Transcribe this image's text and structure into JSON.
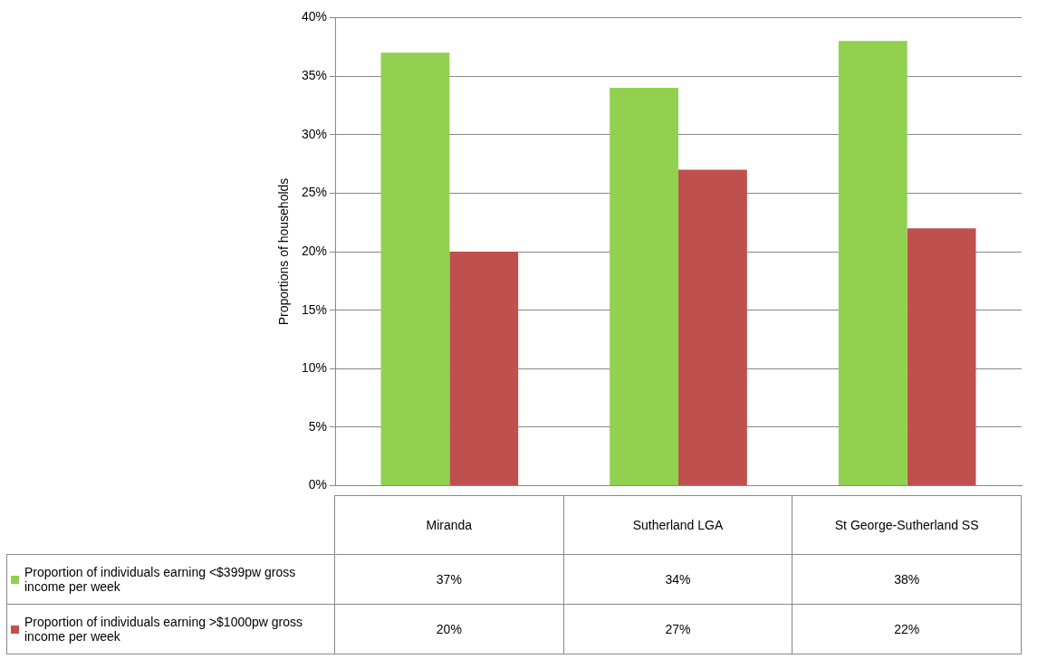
{
  "chart_data": {
    "type": "bar",
    "ylabel": "Proportions of households",
    "categories": [
      "Miranda",
      "Sutherland LGA",
      "St George-Sutherland SS"
    ],
    "series": [
      {
        "name": "Proportion of individuals earning <$399pw gross income per week",
        "color": "#92d050",
        "values": [
          37,
          34,
          38
        ],
        "value_labels": [
          "37%",
          "34%",
          "38%"
        ]
      },
      {
        "name": "Proportion of individuals earning >$1000pw gross income per week",
        "color": "#c0504d",
        "values": [
          20,
          27,
          22
        ],
        "value_labels": [
          "20%",
          "27%",
          "22%"
        ]
      }
    ],
    "ylim": [
      0,
      40
    ],
    "yticks": [
      {
        "value": 0,
        "label": "0%"
      },
      {
        "value": 5,
        "label": "5%"
      },
      {
        "value": 10,
        "label": "10%"
      },
      {
        "value": 15,
        "label": "15%"
      },
      {
        "value": 20,
        "label": "20%"
      },
      {
        "value": 25,
        "label": "25%"
      },
      {
        "value": 30,
        "label": "30%"
      },
      {
        "value": 35,
        "label": "35%"
      },
      {
        "value": 40,
        "label": "40%"
      }
    ],
    "grid": "y",
    "legend": "bottom left"
  }
}
